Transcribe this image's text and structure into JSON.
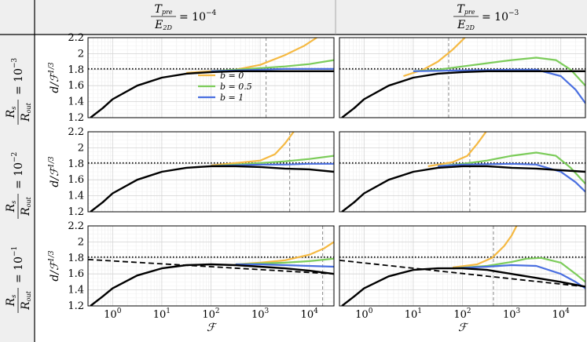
{
  "header": {
    "col_labels": [
      {
        "numerator": "T",
        "sub": "pre",
        "denominator": "E",
        "den_sub": "2D",
        "equals": "= 10",
        "exp": "−4"
      },
      {
        "numerator": "T",
        "sub": "pre",
        "denominator": "E",
        "den_sub": "2D",
        "equals": "= 10",
        "exp": "−3"
      }
    ],
    "row_labels": [
      {
        "numerator": "R",
        "sub": "s",
        "denominator": "R",
        "den_sub": "out",
        "equals": "= 10",
        "exp": "−3"
      },
      {
        "numerator": "R",
        "sub": "s",
        "denominator": "R",
        "den_sub": "out",
        "equals": "= 10",
        "exp": "−2"
      },
      {
        "numerator": "R",
        "sub": "s",
        "denominator": "R",
        "den_sub": "out",
        "equals": "= 10",
        "exp": "−1"
      }
    ]
  },
  "axes": {
    "ylabel": "d/ℱ",
    "ylabel_exp": "1/3",
    "xlabel": "ℱ",
    "xlim_log10": [
      -0.5,
      4.5
    ],
    "ylim": [
      1.2,
      2.2
    ],
    "y_ticks": [
      "1.2",
      "1.4",
      "1.6",
      "1.8",
      "2",
      "2.2"
    ],
    "y_tick_values": [
      1.2,
      1.4,
      1.6,
      1.8,
      2.0,
      2.2
    ],
    "x_tick_exponents": [
      "0",
      "1",
      "2",
      "3",
      "4"
    ],
    "x_tick_base": "10"
  },
  "legend": {
    "entries": [
      {
        "label": "b = 0",
        "color": "#f5b942"
      },
      {
        "label": "b = 0.5",
        "color": "#7ccc5a"
      },
      {
        "label": "b = 1",
        "color": "#4a6fe0"
      }
    ]
  },
  "chart_data": {
    "type": "line",
    "title": "",
    "xlabel": "ℱ",
    "ylabel": "d/ℱ^(1/3)",
    "xscale": "log",
    "ylim": [
      1.2,
      2.2
    ],
    "panels": [
      {
        "row": 0,
        "col": 0,
        "vline_x_log10": 3.12,
        "hline_y": 1.81,
        "dashdot_y": 1.81,
        "black": [
          [
            -0.45,
            1.2
          ],
          [
            -0.2,
            1.32
          ],
          [
            0,
            1.43
          ],
          [
            0.5,
            1.6
          ],
          [
            1,
            1.7
          ],
          [
            1.5,
            1.75
          ],
          [
            2,
            1.77
          ],
          [
            2.5,
            1.78
          ],
          [
            3,
            1.78
          ],
          [
            3.5,
            1.78
          ],
          [
            4,
            1.78
          ],
          [
            4.5,
            1.78
          ]
        ],
        "series": [
          {
            "name": "b = 0",
            "points": [
              [
                1.5,
                1.76
              ],
              [
                2,
                1.78
              ],
              [
                2.5,
                1.8
              ],
              [
                3,
                1.86
              ],
              [
                3.5,
                1.98
              ],
              [
                3.9,
                2.1
              ],
              [
                4.15,
                2.2
              ]
            ]
          },
          {
            "name": "b = 0.5",
            "points": [
              [
                2,
                1.78
              ],
              [
                2.5,
                1.8
              ],
              [
                3,
                1.82
              ],
              [
                3.5,
                1.84
              ],
              [
                4,
                1.87
              ],
              [
                4.5,
                1.92
              ]
            ]
          },
          {
            "name": "b = 1",
            "points": [
              [
                2,
                1.78
              ],
              [
                2.5,
                1.79
              ],
              [
                3,
                1.8
              ],
              [
                3.5,
                1.81
              ],
              [
                4,
                1.81
              ],
              [
                4.5,
                1.81
              ]
            ]
          }
        ]
      },
      {
        "row": 0,
        "col": 1,
        "vline_x_log10": 1.72,
        "hline_y": 1.81,
        "dashdot_y": 1.81,
        "black": [
          [
            -0.45,
            1.2
          ],
          [
            -0.2,
            1.32
          ],
          [
            0,
            1.43
          ],
          [
            0.5,
            1.6
          ],
          [
            1,
            1.7
          ],
          [
            1.5,
            1.75
          ],
          [
            2,
            1.77
          ],
          [
            2.5,
            1.78
          ],
          [
            3,
            1.78
          ],
          [
            3.5,
            1.78
          ],
          [
            4,
            1.78
          ],
          [
            4.5,
            1.78
          ]
        ],
        "series": [
          {
            "name": "b = 0",
            "points": [
              [
                0.8,
                1.72
              ],
              [
                1.2,
                1.8
              ],
              [
                1.5,
                1.9
              ],
              [
                1.8,
                2.05
              ],
              [
                2.05,
                2.2
              ]
            ]
          },
          {
            "name": "b = 0.5",
            "points": [
              [
                1,
                1.78
              ],
              [
                1.5,
                1.8
              ],
              [
                2,
                1.84
              ],
              [
                2.5,
                1.88
              ],
              [
                3,
                1.92
              ],
              [
                3.5,
                1.95
              ],
              [
                3.9,
                1.92
              ],
              [
                4.2,
                1.8
              ],
              [
                4.5,
                1.6
              ]
            ]
          },
          {
            "name": "b = 1",
            "points": [
              [
                1,
                1.78
              ],
              [
                2,
                1.79
              ],
              [
                3,
                1.8
              ],
              [
                3.5,
                1.8
              ],
              [
                4,
                1.72
              ],
              [
                4.3,
                1.55
              ],
              [
                4.5,
                1.38
              ]
            ]
          }
        ]
      },
      {
        "row": 1,
        "col": 0,
        "vline_x_log10": 3.6,
        "hline_y": 1.81,
        "dashdot_y": 1.81,
        "black": [
          [
            -0.45,
            1.2
          ],
          [
            -0.2,
            1.32
          ],
          [
            0,
            1.43
          ],
          [
            0.5,
            1.6
          ],
          [
            1,
            1.7
          ],
          [
            1.5,
            1.75
          ],
          [
            2,
            1.77
          ],
          [
            2.5,
            1.77
          ],
          [
            3,
            1.76
          ],
          [
            3.5,
            1.74
          ],
          [
            4,
            1.73
          ],
          [
            4.5,
            1.7
          ]
        ],
        "series": [
          {
            "name": "b = 0",
            "points": [
              [
                2,
                1.78
              ],
              [
                2.5,
                1.81
              ],
              [
                3,
                1.84
              ],
              [
                3.3,
                1.92
              ],
              [
                3.5,
                2.05
              ],
              [
                3.68,
                2.2
              ]
            ]
          },
          {
            "name": "b = 0.5",
            "points": [
              [
                2,
                1.77
              ],
              [
                2.5,
                1.79
              ],
              [
                3,
                1.81
              ],
              [
                3.5,
                1.83
              ],
              [
                4,
                1.86
              ],
              [
                4.5,
                1.9
              ]
            ]
          },
          {
            "name": "b = 1",
            "points": [
              [
                2,
                1.77
              ],
              [
                2.5,
                1.78
              ],
              [
                3,
                1.79
              ],
              [
                3.5,
                1.79
              ],
              [
                4,
                1.8
              ],
              [
                4.5,
                1.8
              ]
            ]
          }
        ]
      },
      {
        "row": 1,
        "col": 1,
        "vline_x_log10": 2.15,
        "hline_y": 1.81,
        "dashdot_y": 1.81,
        "black": [
          [
            -0.45,
            1.2
          ],
          [
            -0.2,
            1.32
          ],
          [
            0,
            1.43
          ],
          [
            0.5,
            1.6
          ],
          [
            1,
            1.7
          ],
          [
            1.5,
            1.75
          ],
          [
            2,
            1.77
          ],
          [
            2.5,
            1.77
          ],
          [
            3,
            1.75
          ],
          [
            3.5,
            1.74
          ],
          [
            4,
            1.72
          ],
          [
            4.5,
            1.7
          ]
        ],
        "series": [
          {
            "name": "b = 0",
            "points": [
              [
                1.3,
                1.77
              ],
              [
                1.8,
                1.82
              ],
              [
                2.1,
                1.9
              ],
              [
                2.3,
                2.05
              ],
              [
                2.48,
                2.2
              ]
            ]
          },
          {
            "name": "b = 0.5",
            "points": [
              [
                1.5,
                1.77
              ],
              [
                2,
                1.8
              ],
              [
                2.5,
                1.84
              ],
              [
                3,
                1.9
              ],
              [
                3.5,
                1.94
              ],
              [
                3.9,
                1.9
              ],
              [
                4.2,
                1.75
              ],
              [
                4.5,
                1.55
              ]
            ]
          },
          {
            "name": "b = 1",
            "points": [
              [
                1.5,
                1.77
              ],
              [
                2,
                1.79
              ],
              [
                3,
                1.8
              ],
              [
                3.5,
                1.79
              ],
              [
                4,
                1.7
              ],
              [
                4.3,
                1.57
              ],
              [
                4.5,
                1.45
              ]
            ]
          }
        ]
      },
      {
        "row": 2,
        "col": 0,
        "vline_x_log10": 4.27,
        "hline_y": 1.81,
        "dashdot_y": 1.81,
        "dashed_start_y": 1.78,
        "black": [
          [
            -0.45,
            1.2
          ],
          [
            -0.2,
            1.32
          ],
          [
            0,
            1.42
          ],
          [
            0.5,
            1.58
          ],
          [
            1,
            1.67
          ],
          [
            1.5,
            1.71
          ],
          [
            2,
            1.72
          ],
          [
            2.5,
            1.71
          ],
          [
            3,
            1.69
          ],
          [
            3.5,
            1.67
          ],
          [
            4,
            1.64
          ],
          [
            4.5,
            1.6
          ]
        ],
        "series": [
          {
            "name": "b = 0",
            "points": [
              [
                2.5,
                1.72
              ],
              [
                3,
                1.74
              ],
              [
                3.5,
                1.77
              ],
              [
                4,
                1.84
              ],
              [
                4.3,
                1.92
              ],
              [
                4.5,
                2.0
              ]
            ]
          },
          {
            "name": "b = 0.5",
            "points": [
              [
                2.5,
                1.72
              ],
              [
                3,
                1.73
              ],
              [
                3.5,
                1.74
              ],
              [
                4,
                1.76
              ],
              [
                4.5,
                1.79
              ]
            ]
          },
          {
            "name": "b = 1",
            "points": [
              [
                2.5,
                1.72
              ],
              [
                3,
                1.72
              ],
              [
                3.5,
                1.71
              ],
              [
                4,
                1.7
              ],
              [
                4.5,
                1.69
              ]
            ]
          }
        ]
      },
      {
        "row": 2,
        "col": 1,
        "vline_x_log10": 2.63,
        "hline_y": 1.81,
        "dashdot_y": 1.81,
        "dashed_start_y": 1.77,
        "black": [
          [
            -0.45,
            1.2
          ],
          [
            -0.2,
            1.32
          ],
          [
            0,
            1.42
          ],
          [
            0.5,
            1.57
          ],
          [
            1,
            1.65
          ],
          [
            1.5,
            1.67
          ],
          [
            2,
            1.67
          ],
          [
            2.5,
            1.65
          ],
          [
            3,
            1.6
          ],
          [
            3.5,
            1.55
          ],
          [
            4,
            1.5
          ],
          [
            4.5,
            1.44
          ]
        ],
        "series": [
          {
            "name": "b = 0",
            "points": [
              [
                1.8,
                1.68
              ],
              [
                2.3,
                1.72
              ],
              [
                2.6,
                1.8
              ],
              [
                2.85,
                1.95
              ],
              [
                3.0,
                2.08
              ],
              [
                3.1,
                2.2
              ]
            ]
          },
          {
            "name": "b = 0.5",
            "points": [
              [
                1.8,
                1.67
              ],
              [
                2.5,
                1.7
              ],
              [
                3,
                1.75
              ],
              [
                3.3,
                1.79
              ],
              [
                3.6,
                1.8
              ],
              [
                4,
                1.74
              ],
              [
                4.3,
                1.6
              ],
              [
                4.5,
                1.5
              ]
            ]
          },
          {
            "name": "b = 1",
            "points": [
              [
                1.8,
                1.67
              ],
              [
                2.5,
                1.69
              ],
              [
                3,
                1.71
              ],
              [
                3.5,
                1.7
              ],
              [
                4,
                1.6
              ],
              [
                4.3,
                1.5
              ],
              [
                4.5,
                1.42
              ]
            ]
          }
        ]
      }
    ]
  }
}
